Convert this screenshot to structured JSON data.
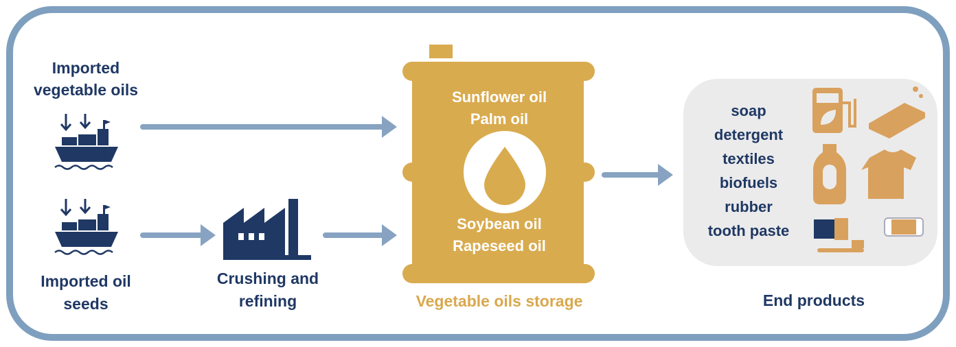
{
  "sources": [
    {
      "label_lines": [
        "Imported",
        "vegetable oils"
      ]
    },
    {
      "label_lines": [
        "Imported oil",
        "seeds"
      ]
    }
  ],
  "process": {
    "label_lines": [
      "Crushing and",
      "refining"
    ]
  },
  "storage": {
    "oils": [
      "Sunflower oil",
      "Palm oil",
      "Soybean oil",
      "Rapeseed oil"
    ],
    "label": "Vegetable oils storage"
  },
  "end_products": {
    "items": [
      "soap",
      "detergent",
      "textiles",
      "biofuels",
      "rubber",
      "tooth paste"
    ],
    "label": "End products"
  }
}
